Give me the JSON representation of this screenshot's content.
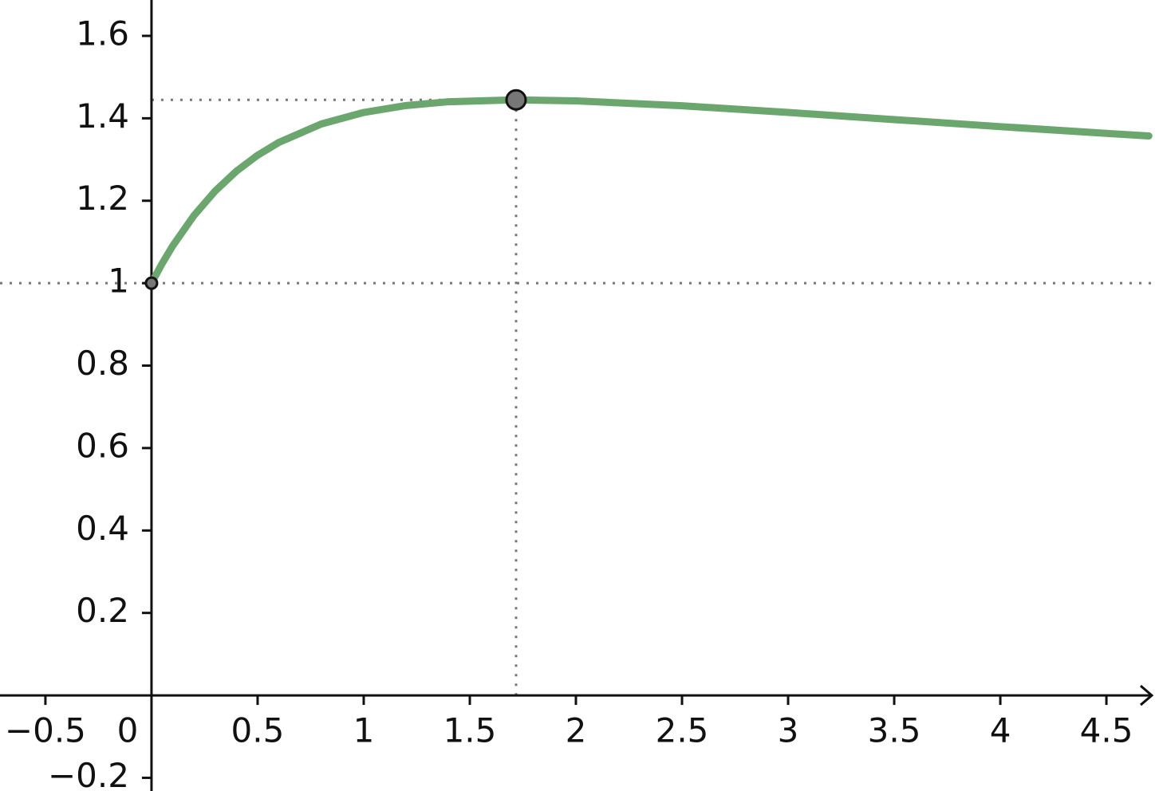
{
  "chart_data": {
    "type": "line",
    "x": [
      0,
      0.05,
      0.1,
      0.2,
      0.3,
      0.4,
      0.5,
      0.6,
      0.8,
      1,
      1.2,
      1.4,
      1.718,
      2,
      2.5,
      3,
      3.5,
      4,
      4.5,
      4.7
    ],
    "series": [
      {
        "color": "#6aa66e",
        "values": [
          1,
          1.0476,
          1.0905,
          1.1641,
          1.2236,
          1.2717,
          1.3104,
          1.3414,
          1.3862,
          1.4142,
          1.431,
          1.4402,
          1.4447,
          1.4422,
          1.4304,
          1.4142,
          1.3969,
          1.3798,
          1.3634,
          1.3571
        ]
      }
    ],
    "points": [
      {
        "x": 0,
        "y": 1
      },
      {
        "x": 1.718,
        "y": 1.4447
      }
    ],
    "xlim": [
      -0.714,
      4.729
    ],
    "ylim": [
      -0.232,
      1.687
    ],
    "xticks": [
      {
        "value": -0.5,
        "label": "−0.5"
      },
      0,
      0.5,
      1,
      1.5,
      2,
      2.5,
      3,
      3.5,
      4,
      4.5
    ],
    "yticks": [
      {
        "value": -0.2,
        "label": "−0.2"
      },
      0.2,
      0.4,
      0.6,
      0.8,
      1,
      1.2,
      1.4,
      1.6
    ]
  }
}
